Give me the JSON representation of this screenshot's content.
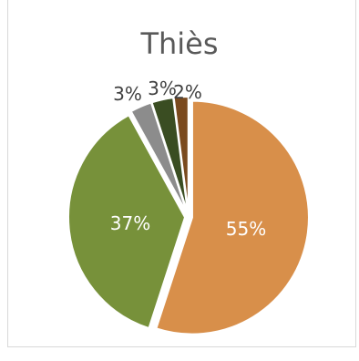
{
  "chart_data": {
    "type": "pie",
    "title": "Thiès",
    "slices": [
      {
        "label": "55%",
        "value": 55,
        "color": "#d88f4a",
        "label_color": "#ffffff",
        "label_inside": true
      },
      {
        "label": "37%",
        "value": 37,
        "color": "#77913a",
        "label_color": "#ffffff",
        "label_inside": true
      },
      {
        "label": "3%",
        "value": 3,
        "color": "#8c8c8c",
        "label_color": "#404040",
        "label_inside": false
      },
      {
        "label": "3%",
        "value": 3,
        "color": "#3a4d22",
        "label_color": "#404040",
        "label_inside": false
      },
      {
        "label": "2%",
        "value": 2,
        "color": "#7a4a1e",
        "label_color": "#404040",
        "label_inside": false
      }
    ],
    "legend": "none"
  }
}
